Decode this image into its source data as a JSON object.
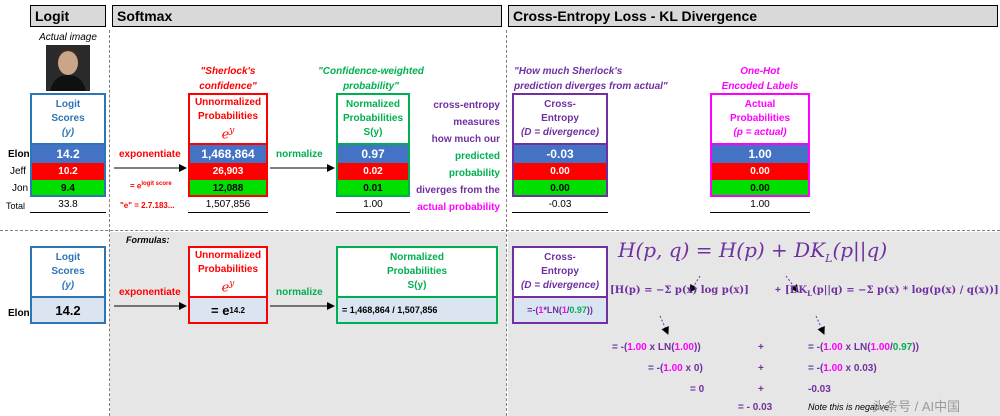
{
  "headers": {
    "logit": "Logit",
    "softmax": "Softmax",
    "crossentropy": "Cross-Entropy Loss - KL Divergence"
  },
  "actual_image_label": "Actual image",
  "names": [
    "Elon",
    "Jeff",
    "Jon"
  ],
  "total_label": "Total",
  "logit": {
    "title_line1": "Logit",
    "title_line2": "Scores",
    "title_line3": "(y)",
    "values": [
      "14.2",
      "10.2",
      "9.4"
    ],
    "total": "33.8"
  },
  "unnormalized": {
    "quote_line1": "\"Sherlock's",
    "quote_line2": "confidence\"",
    "title_line1": "Unnormalized",
    "title_line2": "Probabilities",
    "title_line3": "e",
    "title_sup": "y",
    "values": [
      "1,468,864",
      "26,903",
      "12,088"
    ],
    "total": "1,507,856"
  },
  "normalized": {
    "quote_line1": "\"Confidence-weighted",
    "quote_line2": "probability\"",
    "title_line1": "Normalized",
    "title_line2": "Probabilities",
    "title_line3": "S(y)",
    "values": [
      "0.97",
      "0.02",
      "0.01"
    ],
    "total": "1.00"
  },
  "ce_text": [
    "cross-entropy",
    "measures",
    "how much our",
    "predicted",
    "probability",
    "diverges from the",
    "actual probability"
  ],
  "divergence": {
    "quote_line1": "\"How much Sherlock's",
    "quote_line2": "prediction diverges from actual\"",
    "title_line1": "Cross-",
    "title_line2": "Entropy",
    "title_line3": "(D = divergence)",
    "values": [
      "-0.03",
      "0.00",
      "0.00"
    ],
    "total": "-0.03"
  },
  "onehot": {
    "quote_line1": "One-Hot",
    "quote_line2": "Encoded Labels",
    "title_line1": "Actual",
    "title_line2": "Probabilities",
    "title_line3": "(p = actual)",
    "values": [
      "1.00",
      "0.00",
      "0.00"
    ],
    "total": "1.00"
  },
  "arrows": {
    "exponentiate": "exponentiate",
    "normalize": "normalize",
    "exp_note_pre": "= e",
    "exp_note_sup": "logit score",
    "e_note": "\"e\" = 2.7.183..."
  },
  "formulas": {
    "label": "Formulas:",
    "elon_label": "Elon",
    "logit_value": "14.2",
    "unnorm_pre": "= e",
    "unnorm_sup": "14.2",
    "norm_formula": "= 1,468,864 / 1,507,856",
    "ce_formula_pre": "=-(",
    "ce_formula_a": "1",
    "ce_formula_mid": "*LN(",
    "ce_formula_b": "1",
    "ce_formula_sep": "/",
    "ce_formula_c": "0.97",
    "ce_formula_post": "))",
    "big_eq": "H(p, q) = H(p) + DK",
    "big_eq_sub": "L",
    "big_eq_end": "(p||q)",
    "hp_eq": "[H(p) = −Σ p(x) log p(x)]",
    "plus": "+",
    "dkl_eq": "[DK",
    "dkl_eq_rest": "(p||q) = −Σ p(x) * log(p(x) / q(x))]",
    "row1_left_pre": "= -(",
    "row1_left_a": "1.00",
    "row1_left_mid": " x LN(",
    "row1_left_b": "1.00",
    "row1_left_post": "))",
    "row1_right_pre": "= -(",
    "row1_right_a": "1.00",
    "row1_right_mid": " x LN(",
    "row1_right_b": "1.00",
    "row1_right_sep": "/",
    "row1_right_c": "0.97",
    "row1_right_post": "))",
    "row2_left_pre": "= -(",
    "row2_left_a": "1.00",
    "row2_left_mid": " x ",
    "row2_left_b": "0",
    "row2_left_post": ")",
    "row2_right_pre": "= -(",
    "row2_right_a": "1.00",
    "row2_right_mid": " x ",
    "row2_right_b": "0.03",
    "row2_right_post": ")",
    "row3_left": "= 0",
    "row3_right": "-0.03",
    "row4": "= - 0.03",
    "note": "Note this is negative"
  },
  "watermark": "头条号 / AI中国",
  "colors": {
    "logit_border": "#2e75b6",
    "unnorm_border": "#ff0000",
    "norm_border": "#00b050",
    "ce_border": "#7030a0",
    "onehot_border": "#ff00ff"
  }
}
